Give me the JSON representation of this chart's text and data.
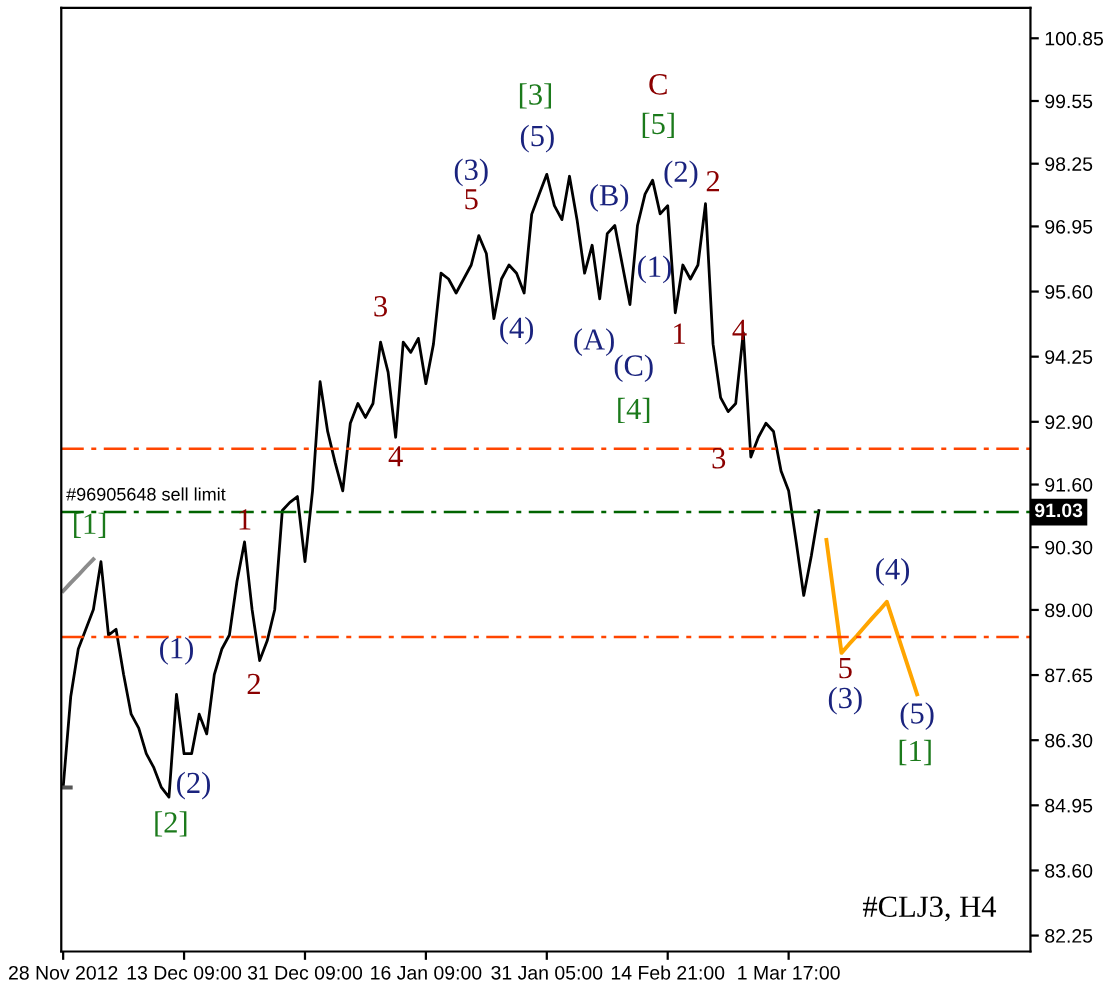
{
  "chart_data": {
    "type": "line",
    "categories": [
      "28 Nov 2012",
      null,
      null,
      null,
      null,
      null,
      null,
      null,
      null,
      null,
      null,
      null,
      null,
      null,
      null,
      null,
      "13 Dec 09:00",
      null,
      null,
      null,
      null,
      null,
      null,
      null,
      null,
      null,
      null,
      null,
      null,
      null,
      null,
      null,
      "31 Dec 09:00",
      null,
      null,
      null,
      null,
      null,
      null,
      null,
      null,
      null,
      null,
      null,
      null,
      null,
      null,
      null,
      "16 Jan 09:00",
      null,
      null,
      null,
      null,
      null,
      null,
      null,
      null,
      null,
      null,
      null,
      null,
      null,
      null,
      null,
      "31 Jan 05:00",
      null,
      null,
      null,
      null,
      null,
      null,
      null,
      null,
      null,
      null,
      null,
      null,
      null,
      null,
      null,
      "14 Feb 21:00",
      null,
      null,
      null,
      null,
      null,
      null,
      null,
      null,
      null,
      null,
      null,
      null,
      null,
      null,
      null,
      "1 Mar 17:00",
      null,
      null,
      null,
      null,
      null,
      null,
      null,
      null,
      null,
      null,
      null,
      null,
      null,
      null,
      null,
      null,
      null,
      null,
      null,
      null,
      null,
      null,
      null,
      null,
      null,
      null,
      null,
      null,
      null,
      null,
      null,
      null
    ],
    "ylim": [
      81.92,
      101.48
    ],
    "yticks": [
      {
        "value": 82.25,
        "label": "82.25"
      },
      {
        "value": 83.6,
        "label": "83.60"
      },
      {
        "value": 84.95,
        "label": "84.95"
      },
      {
        "value": 86.3,
        "label": "86.30"
      },
      {
        "value": 87.65,
        "label": "87.65"
      },
      {
        "value": 89.0,
        "label": "89.00"
      },
      {
        "value": 90.3,
        "label": "90.30"
      },
      {
        "value": 91.6,
        "label": "91.60"
      },
      {
        "value": 92.9,
        "label": "92.90"
      },
      {
        "value": 94.25,
        "label": "94.25"
      },
      {
        "value": 95.6,
        "label": "95.60"
      },
      {
        "value": 96.95,
        "label": "96.95"
      },
      {
        "value": 98.25,
        "label": "98.25"
      },
      {
        "value": 99.55,
        "label": "99.55"
      },
      {
        "value": 100.85,
        "label": "100.85"
      }
    ],
    "grid": false,
    "series": [
      {
        "color": "#000000",
        "values": [
          85.32,
          87.2,
          88.19,
          88.6,
          89.01,
          90.0,
          88.48,
          88.6,
          87.66,
          86.84,
          86.55,
          86.02,
          85.73,
          85.32,
          85.12,
          87.25,
          86.02,
          86.02,
          86.84,
          86.43,
          87.66,
          88.19,
          88.48,
          89.59,
          90.41,
          89.01,
          87.95,
          88.36,
          89.01,
          91.06,
          91.23,
          91.35,
          90.0,
          91.47,
          93.73,
          92.7,
          92.05,
          91.47,
          92.87,
          93.28,
          92.99,
          93.28,
          94.55,
          93.93,
          92.58,
          94.55,
          94.34,
          94.63,
          93.69,
          94.51,
          95.98,
          95.86,
          95.57,
          95.86,
          96.15,
          96.76,
          96.39,
          95.04,
          95.86,
          96.15,
          95.98,
          95.57,
          97.2,
          97.62,
          98.03,
          97.38,
          97.09,
          97.99,
          97.09,
          95.98,
          96.56,
          95.45,
          96.8,
          96.97,
          96.15,
          95.33,
          96.97,
          97.62,
          97.91,
          97.21,
          97.38,
          95.16,
          96.15,
          95.86,
          96.15,
          97.42,
          94.51,
          93.4,
          93.11,
          93.28,
          94.75,
          92.17,
          92.58,
          92.87,
          92.7,
          91.88,
          91.47,
          90.41,
          89.3,
          90.12,
          91.06,
          null,
          null,
          null,
          null,
          null,
          null,
          null,
          null,
          null,
          null,
          null,
          null,
          null,
          null,
          null,
          null,
          null,
          null,
          null,
          null,
          null,
          null,
          null,
          null,
          null,
          null,
          null,
          null
        ]
      },
      {
        "color": "#ffa500",
        "values": [
          null,
          null,
          null,
          null,
          null,
          null,
          null,
          null,
          null,
          null,
          null,
          null,
          null,
          null,
          null,
          null,
          null,
          null,
          null,
          null,
          null,
          null,
          null,
          null,
          null,
          null,
          null,
          null,
          null,
          null,
          null,
          null,
          null,
          null,
          null,
          null,
          null,
          null,
          null,
          null,
          null,
          null,
          null,
          null,
          null,
          null,
          null,
          null,
          null,
          null,
          null,
          null,
          null,
          null,
          null,
          null,
          null,
          null,
          null,
          null,
          null,
          null,
          null,
          null,
          null,
          null,
          null,
          null,
          null,
          null,
          null,
          null,
          null,
          null,
          null,
          null,
          null,
          null,
          null,
          null,
          null,
          null,
          null,
          null,
          null,
          null,
          null,
          null,
          null,
          null,
          null,
          null,
          null,
          null,
          null,
          null,
          null,
          null,
          null,
          null,
          null,
          90.45,
          89.28,
          88.11,
          88.29,
          88.46,
          88.64,
          88.82,
          88.99,
          89.17,
          88.69,
          88.21,
          87.73,
          87.25,
          null,
          null,
          null,
          null,
          null,
          null,
          null,
          null,
          null,
          null,
          null,
          null,
          null,
          null,
          null
        ]
      },
      {
        "color": "#8c8c8c",
        "values": [
          89.39,
          89.56,
          89.72,
          89.89,
          90.05,
          null,
          null,
          null,
          null,
          null,
          null,
          null,
          null,
          null,
          null,
          null,
          null,
          null,
          null,
          null,
          null,
          null,
          null,
          null,
          null,
          null,
          null,
          null,
          null,
          null,
          null,
          null,
          null,
          null,
          null,
          null,
          null,
          null,
          null,
          null,
          null,
          null,
          null,
          null,
          null,
          null,
          null,
          null,
          null,
          null,
          null,
          null,
          null,
          null,
          null,
          null,
          null,
          null,
          null,
          null,
          null,
          null,
          null,
          null,
          null,
          null,
          null,
          null,
          null,
          null,
          null,
          null,
          null,
          null,
          null,
          null,
          null,
          null,
          null,
          null,
          null,
          null,
          null,
          null,
          null,
          null,
          null,
          null,
          null,
          null,
          null,
          null,
          null,
          null,
          null,
          null,
          null,
          null,
          null,
          null,
          null,
          null,
          null,
          null,
          null,
          null,
          null,
          null,
          null,
          null,
          null,
          null,
          null,
          null,
          null,
          null,
          null,
          null,
          null,
          null,
          null,
          null,
          null,
          null,
          null,
          null,
          null,
          null,
          null
        ]
      },
      {
        "color": "#555555",
        "values": [
          85.32,
          85.32,
          null,
          null,
          null,
          null,
          null,
          null,
          null,
          null,
          null,
          null,
          null,
          null,
          null,
          null,
          null,
          null,
          null,
          null,
          null,
          null,
          null,
          null,
          null,
          null,
          null,
          null,
          null,
          null,
          null,
          null,
          null,
          null,
          null,
          null,
          null,
          null,
          null,
          null,
          null,
          null,
          null,
          null,
          null,
          null,
          null,
          null,
          null,
          null,
          null,
          null,
          null,
          null,
          null,
          null,
          null,
          null,
          null,
          null,
          null,
          null,
          null,
          null,
          null,
          null,
          null,
          null,
          null,
          null,
          null,
          null,
          null,
          null,
          null,
          null,
          null,
          null,
          null,
          null,
          null,
          null,
          null,
          null,
          null,
          null,
          null,
          null,
          null,
          null,
          null,
          null,
          null,
          null,
          null,
          null,
          null,
          null,
          null,
          null,
          null,
          null,
          null,
          null,
          null,
          null,
          null,
          null,
          null,
          null,
          null,
          null,
          null,
          null,
          null,
          null,
          null,
          null,
          null,
          null,
          null,
          null,
          null,
          null,
          null,
          null,
          null,
          null,
          null
        ]
      }
    ],
    "ref_lines": [
      {
        "axis": "y",
        "value": 92.34,
        "color": "#ff4500",
        "line_style": "dashed"
      },
      {
        "axis": "y",
        "value": 88.44,
        "color": "#ff4500",
        "line_style": "dashed"
      },
      {
        "axis": "y",
        "value": 91.03,
        "color": "#006400",
        "line_style": "dashed",
        "label": "91.03"
      }
    ],
    "annotations": [
      "[1]",
      "(1)",
      "(2)",
      "[2]",
      "1",
      "2",
      "3",
      "4",
      "5",
      "(3)",
      "(4)",
      "(5)",
      "[3]",
      "(A)",
      "(B)",
      "(C)",
      "[4]",
      "(1)",
      "C",
      "[5]",
      "1",
      "(2)",
      "2",
      "3",
      "4",
      "5",
      "(3)",
      "(4)",
      "(5)",
      "[1]",
      "#CLJ3, H4",
      "#96905648 sell limit"
    ]
  }
}
